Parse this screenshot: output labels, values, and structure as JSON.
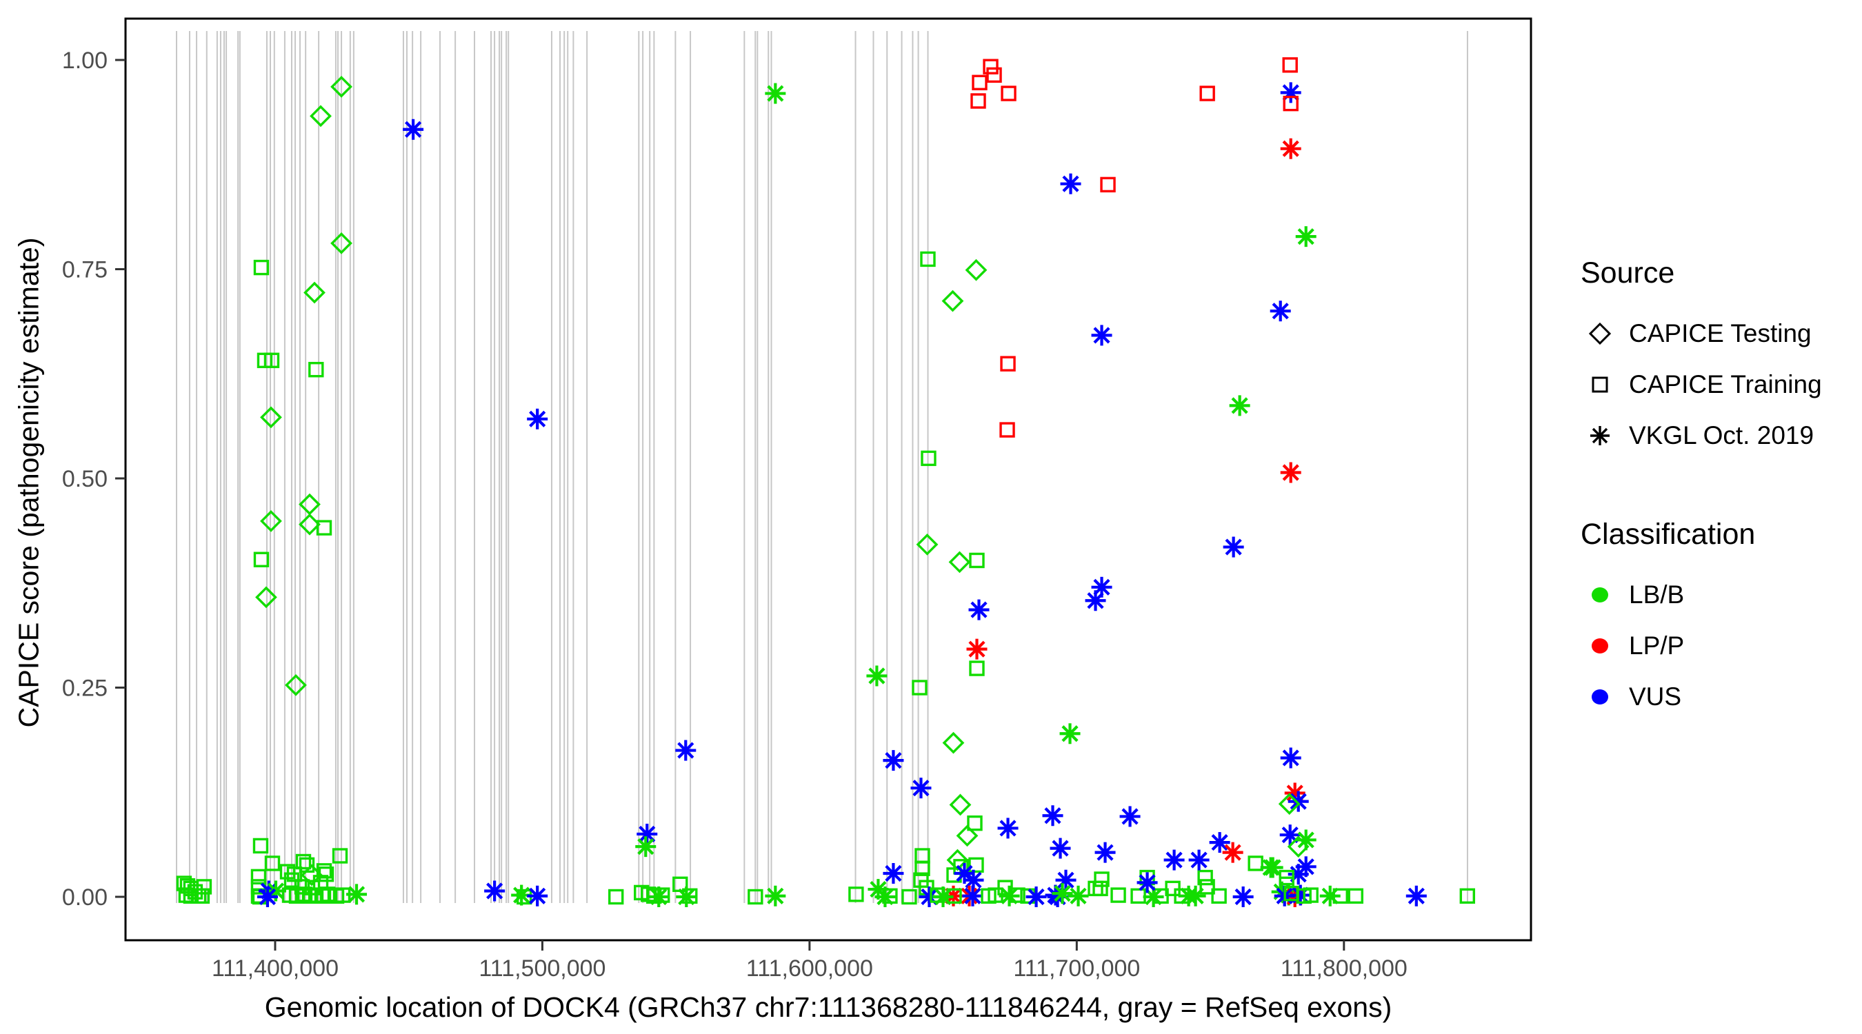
{
  "chart_data": {
    "type": "scatter",
    "title": "",
    "xlabel": "Genomic location of DOCK4 (GRCh37 chr7:111368280-111846244, gray = RefSeq exons)",
    "ylabel": "CAPICE score (pathogenicity estimate)",
    "x_range": [
      111344000,
      111870000
    ],
    "y_range": [
      -0.05,
      1.05
    ],
    "grid": false,
    "x_ticks": {
      "values": [
        111400000,
        111500000,
        111600000,
        111700000,
        111800000
      ],
      "labels": [
        "111,400,000",
        "111,500,000",
        "111,600,000",
        "111,700,000",
        "111,800,000"
      ]
    },
    "y_ticks": {
      "values": [
        0.0,
        0.25,
        0.5,
        0.75,
        1.0
      ],
      "labels": [
        "0.00",
        "0.25",
        "0.50",
        "0.75",
        "1.00"
      ]
    },
    "legend": {
      "position": "right",
      "source": {
        "title": "Source",
        "items": [
          {
            "label": "CAPICE Testing",
            "shape": "diamond"
          },
          {
            "label": "CAPICE Training",
            "shape": "square"
          },
          {
            "label": "VKGL Oct. 2019",
            "shape": "asterisk"
          }
        ]
      },
      "classification": {
        "title": "Classification",
        "items": [
          {
            "label": "LB/B",
            "color": "#12DC00"
          },
          {
            "label": "LP/P",
            "color": "#FF0000"
          },
          {
            "label": "VUS",
            "color": "#0000FF"
          }
        ]
      }
    },
    "colors": {
      "g": "#12DC00",
      "r": "#FF0000",
      "b": "#0000FF",
      "exon_line": "#C7C7C7",
      "tick_text": "#4D4D4D"
    },
    "shape_codes": {
      "d": "diamond (CAPICE Testing)",
      "q": "square (CAPICE Training)",
      "a": "asterisk (VKGL Oct. 2019)"
    },
    "color_codes": {
      "g": "LB/B",
      "r": "LP/P",
      "b": "VUS"
    },
    "exons_bp": [
      111363100,
      111368000,
      111370600,
      111374400,
      111378300,
      111379600,
      111380900,
      111381700,
      111386100,
      111386800,
      111396900,
      111398200,
      111399700,
      111403600,
      111406200,
      111407500,
      111409300,
      111411400,
      111416300,
      111422700,
      111423500,
      111424800,
      111428100,
      111429400,
      111448000,
      111449300,
      111451400,
      111454500,
      111461700,
      111467400,
      111474600,
      111480800,
      111482100,
      111483900,
      111484700,
      111486500,
      111487300,
      111503500,
      111506600,
      111508200,
      111509500,
      111511600,
      111516700,
      111536100,
      111537600,
      111540200,
      111541800,
      111549800,
      111555400,
      111575600,
      111579700,
      111580500,
      111584600,
      111585700,
      111617200,
      111623900,
      111629000,
      111634500,
      111638600,
      111640700,
      111644300,
      111846244
    ],
    "points": [
      [
        111424790,
        0.968,
        "d",
        "g"
      ],
      [
        111417045,
        0.933,
        "d",
        "g"
      ],
      [
        111451652,
        0.917,
        "a",
        "b"
      ],
      [
        111424790,
        0.781,
        "d",
        "g"
      ],
      [
        111394835,
        0.752,
        "q",
        "g"
      ],
      [
        111414719,
        0.722,
        "d",
        "g"
      ],
      [
        111396126,
        0.641,
        "q",
        "g"
      ],
      [
        111398708,
        0.641,
        "q",
        "g"
      ],
      [
        111415314,
        0.63,
        "q",
        "g"
      ],
      [
        111398450,
        0.573,
        "d",
        "g"
      ],
      [
        111498128,
        0.571,
        "a",
        "b"
      ],
      [
        111412911,
        0.469,
        "d",
        "g"
      ],
      [
        111398450,
        0.449,
        "d",
        "g"
      ],
      [
        111412911,
        0.445,
        "d",
        "g"
      ],
      [
        111418333,
        0.441,
        "q",
        "g"
      ],
      [
        111394835,
        0.403,
        "q",
        "g"
      ],
      [
        111396642,
        0.358,
        "d",
        "g"
      ],
      [
        111407747,
        0.253,
        "d",
        "g"
      ],
      [
        111365916,
        0.016,
        "q",
        "g"
      ],
      [
        111367207,
        0.013,
        "q",
        "g"
      ],
      [
        111368498,
        0.01,
        "q",
        "g"
      ],
      [
        111370047,
        0.006,
        "q",
        "g"
      ],
      [
        111366690,
        0.002,
        "q",
        "g"
      ],
      [
        111368498,
        0.001,
        "q",
        "g"
      ],
      [
        111371338,
        0.001,
        "q",
        "g"
      ],
      [
        111373404,
        0.012,
        "q",
        "g"
      ],
      [
        111372629,
        0.001,
        "q",
        "g"
      ],
      [
        111394577,
        0.061,
        "q",
        "g"
      ],
      [
        111398966,
        0.04,
        "q",
        "g"
      ],
      [
        111393803,
        0.024,
        "q",
        "g"
      ],
      [
        111393803,
        0.012,
        "q",
        "g"
      ],
      [
        111393803,
        0.001,
        "q",
        "g"
      ],
      [
        111394319,
        0.0,
        "q",
        "g"
      ],
      [
        111397676,
        0.007,
        "a",
        "b"
      ],
      [
        111400258,
        0.007,
        "a",
        "g"
      ],
      [
        111397160,
        0.0,
        "a",
        "b"
      ],
      [
        111424273,
        0.049,
        "q",
        "g"
      ],
      [
        111410587,
        0.042,
        "q",
        "g"
      ],
      [
        111411878,
        0.038,
        "q",
        "g"
      ],
      [
        111404648,
        0.03,
        "q",
        "g"
      ],
      [
        111407230,
        0.027,
        "q",
        "g"
      ],
      [
        111419108,
        0.027,
        "q",
        "g"
      ],
      [
        111418333,
        0.031,
        "q",
        "g"
      ],
      [
        111413686,
        0.026,
        "d",
        "g"
      ],
      [
        111406197,
        0.02,
        "q",
        "g"
      ],
      [
        111417045,
        0.017,
        "q",
        "g"
      ],
      [
        111410070,
        0.012,
        "q",
        "g"
      ],
      [
        111413944,
        0.011,
        "q",
        "g"
      ],
      [
        111405423,
        0.002,
        "q",
        "g"
      ],
      [
        111408005,
        0.001,
        "q",
        "g"
      ],
      [
        111411104,
        0.003,
        "q",
        "g"
      ],
      [
        111413170,
        0.001,
        "q",
        "g"
      ],
      [
        111415236,
        0.002,
        "q",
        "g"
      ],
      [
        111417560,
        0.001,
        "q",
        "g"
      ],
      [
        111419625,
        0.003,
        "q",
        "g"
      ],
      [
        111422982,
        0.001,
        "q",
        "g"
      ],
      [
        111425306,
        0.002,
        "q",
        "g"
      ],
      [
        111430470,
        0.003,
        "a",
        "g"
      ],
      [
        111482118,
        0.007,
        "a",
        "b"
      ],
      [
        111492189,
        0.002,
        "a",
        "g"
      ],
      [
        111493222,
        0.0,
        "q",
        "g"
      ],
      [
        111498128,
        0.001,
        "a",
        "b"
      ],
      [
        111539188,
        0.075,
        "a",
        "b"
      ],
      [
        111538671,
        0.06,
        "a",
        "g"
      ],
      [
        111553647,
        0.175,
        "a",
        "b"
      ],
      [
        111527561,
        0.0,
        "q",
        "g"
      ],
      [
        111537114,
        0.005,
        "q",
        "g"
      ],
      [
        111539696,
        0.003,
        "q",
        "g"
      ],
      [
        111541762,
        0.001,
        "q",
        "g"
      ],
      [
        111543570,
        0.0,
        "a",
        "g"
      ],
      [
        111544861,
        0.002,
        "q",
        "g"
      ],
      [
        111551582,
        0.015,
        "q",
        "g"
      ],
      [
        111553905,
        0.0,
        "a",
        "g"
      ],
      [
        111555196,
        0.001,
        "q",
        "g"
      ],
      [
        111579725,
        0.0,
        "q",
        "g"
      ],
      [
        111587214,
        0.001,
        "a",
        "g"
      ],
      [
        111587214,
        0.96,
        "a",
        "g"
      ],
      [
        111617423,
        0.003,
        "q",
        "g"
      ],
      [
        111625173,
        0.264,
        "a",
        "g"
      ],
      [
        111625690,
        0.009,
        "a",
        "g"
      ],
      [
        111628272,
        0.0,
        "a",
        "g"
      ],
      [
        111630079,
        0.001,
        "q",
        "g"
      ],
      [
        111631370,
        0.163,
        "a",
        "b"
      ],
      [
        111631370,
        0.028,
        "a",
        "b"
      ],
      [
        111637309,
        0.0,
        "q",
        "g"
      ],
      [
        111641191,
        0.25,
        "q",
        "g"
      ],
      [
        111641707,
        0.13,
        "a",
        "b"
      ],
      [
        111642224,
        0.049,
        "q",
        "g"
      ],
      [
        111642224,
        0.034,
        "q",
        "g"
      ],
      [
        111641707,
        0.02,
        "q",
        "g"
      ],
      [
        111643773,
        0.011,
        "q",
        "g"
      ],
      [
        111644548,
        0.524,
        "q",
        "g"
      ],
      [
        111644031,
        0.421,
        "d",
        "g"
      ],
      [
        111644289,
        0.762,
        "q",
        "g"
      ],
      [
        111644806,
        0.0,
        "a",
        "b"
      ],
      [
        111653840,
        0.184,
        "d",
        "g"
      ],
      [
        111655389,
        0.044,
        "d",
        "g"
      ],
      [
        111654098,
        0.026,
        "q",
        "g"
      ],
      [
        111656680,
        0.036,
        "q",
        "g"
      ],
      [
        111662361,
        0.038,
        "q",
        "g"
      ],
      [
        111656422,
        0.11,
        "d",
        "g"
      ],
      [
        111659004,
        0.073,
        "d",
        "g"
      ],
      [
        111661845,
        0.088,
        "q",
        "g"
      ],
      [
        111657971,
        0.028,
        "a",
        "b"
      ],
      [
        111661329,
        0.02,
        "a",
        "b"
      ],
      [
        111653581,
        0.712,
        "d",
        "g"
      ],
      [
        111662361,
        0.749,
        "d",
        "g"
      ],
      [
        111656164,
        0.4,
        "d",
        "g"
      ],
      [
        111662620,
        0.402,
        "q",
        "g"
      ],
      [
        111663394,
        0.343,
        "a",
        "b"
      ],
      [
        111662620,
        0.296,
        "a",
        "r"
      ],
      [
        111662620,
        0.273,
        "q",
        "g"
      ],
      [
        111653840,
        0.001,
        "a",
        "r"
      ],
      [
        111659779,
        0.001,
        "a",
        "r"
      ],
      [
        111661071,
        0.001,
        "a",
        "b"
      ],
      [
        111647906,
        0.002,
        "q",
        "g"
      ],
      [
        111649972,
        0.0,
        "a",
        "g"
      ],
      [
        111654097,
        0.001,
        "q",
        "g"
      ],
      [
        111667013,
        0.001,
        "q",
        "g"
      ],
      [
        111669595,
        0.002,
        "q",
        "g"
      ],
      [
        111673211,
        0.011,
        "q",
        "g"
      ],
      [
        111674760,
        0.001,
        "a",
        "g"
      ],
      [
        111677859,
        0.002,
        "q",
        "g"
      ],
      [
        111681734,
        0.001,
        "q",
        "g"
      ],
      [
        111684833,
        0.0,
        "a",
        "b"
      ],
      [
        111692838,
        0.0,
        "a",
        "b"
      ],
      [
        111674245,
        0.082,
        "a",
        "b"
      ],
      [
        111667789,
        0.992,
        "q",
        "r"
      ],
      [
        111669080,
        0.982,
        "q",
        "r"
      ],
      [
        111663652,
        0.973,
        "q",
        "r"
      ],
      [
        111674502,
        0.96,
        "q",
        "r"
      ],
      [
        111663136,
        0.951,
        "q",
        "r"
      ],
      [
        111674244,
        0.637,
        "q",
        "r"
      ],
      [
        111673986,
        0.558,
        "q",
        "r"
      ],
      [
        111711669,
        0.851,
        "q",
        "r"
      ],
      [
        111748868,
        0.96,
        "q",
        "r"
      ],
      [
        111697727,
        0.852,
        "a",
        "b"
      ],
      [
        111709345,
        0.671,
        "a",
        "b"
      ],
      [
        111709345,
        0.37,
        "a",
        "b"
      ],
      [
        111707021,
        0.354,
        "a",
        "b"
      ],
      [
        111697469,
        0.195,
        "a",
        "g"
      ],
      [
        111691014,
        0.097,
        "a",
        "b"
      ],
      [
        111719934,
        0.096,
        "a",
        "b"
      ],
      [
        111693855,
        0.058,
        "a",
        "b"
      ],
      [
        111710636,
        0.053,
        "a",
        "b"
      ],
      [
        111695921,
        0.02,
        "a",
        "b"
      ],
      [
        111692047,
        0.002,
        "a",
        "b"
      ],
      [
        111694630,
        0.004,
        "a",
        "g"
      ],
      [
        111700568,
        0.001,
        "a",
        "g"
      ],
      [
        111709345,
        0.021,
        "q",
        "g"
      ],
      [
        111707021,
        0.01,
        "q",
        "g"
      ],
      [
        111708828,
        0.01,
        "q",
        "g"
      ],
      [
        111715543,
        0.002,
        "q",
        "g"
      ],
      [
        111723033,
        0.001,
        "q",
        "g"
      ],
      [
        111728714,
        0.0,
        "a",
        "g"
      ],
      [
        111731554,
        0.001,
        "q",
        "g"
      ],
      [
        111735944,
        0.01,
        "q",
        "g"
      ],
      [
        111739301,
        0.001,
        "q",
        "g"
      ],
      [
        111741883,
        0.001,
        "a",
        "g"
      ],
      [
        111744465,
        0.001,
        "a",
        "g"
      ],
      [
        111753245,
        0.001,
        "q",
        "g"
      ],
      [
        111726390,
        0.023,
        "q",
        "g"
      ],
      [
        111726390,
        0.017,
        "a",
        "b"
      ],
      [
        111748080,
        0.023,
        "q",
        "g"
      ],
      [
        111748855,
        0.012,
        "q",
        "g"
      ],
      [
        111736460,
        0.044,
        "a",
        "b"
      ],
      [
        111745756,
        0.044,
        "a",
        "b"
      ],
      [
        111753503,
        0.065,
        "a",
        "b"
      ],
      [
        111758409,
        0.053,
        "a",
        "r"
      ],
      [
        111766930,
        0.04,
        "q",
        "g"
      ],
      [
        111772611,
        0.035,
        "a",
        "g"
      ],
      [
        111762283,
        0.0,
        "a",
        "b"
      ],
      [
        111779848,
        0.994,
        "q",
        "r"
      ],
      [
        111780106,
        0.961,
        "a",
        "b"
      ],
      [
        111780106,
        0.948,
        "q",
        "r"
      ],
      [
        111780106,
        0.894,
        "a",
        "r"
      ],
      [
        111785787,
        0.789,
        "a",
        "g"
      ],
      [
        111776232,
        0.7,
        "a",
        "b"
      ],
      [
        111760991,
        0.587,
        "a",
        "g"
      ],
      [
        111780106,
        0.507,
        "a",
        "r"
      ],
      [
        111758667,
        0.418,
        "a",
        "b"
      ],
      [
        111780106,
        0.166,
        "a",
        "b"
      ],
      [
        111781655,
        0.124,
        "a",
        "r"
      ],
      [
        111782946,
        0.114,
        "a",
        "b"
      ],
      [
        111779590,
        0.111,
        "d",
        "g"
      ],
      [
        111779848,
        0.074,
        "a",
        "b"
      ],
      [
        111785787,
        0.068,
        "a",
        "g"
      ],
      [
        111782946,
        0.06,
        "d",
        "g"
      ],
      [
        111773385,
        0.035,
        "a",
        "g"
      ],
      [
        111785787,
        0.036,
        "a",
        "b"
      ],
      [
        111782946,
        0.027,
        "a",
        "b"
      ],
      [
        111778557,
        0.023,
        "q",
        "g"
      ],
      [
        111778557,
        0.015,
        "q",
        "g"
      ],
      [
        111776749,
        0.006,
        "a",
        "g"
      ],
      [
        111779331,
        0.002,
        "a",
        "g"
      ],
      [
        111781655,
        0.0,
        "a",
        "r"
      ],
      [
        111777782,
        0.001,
        "a",
        "b"
      ],
      [
        111783721,
        0.002,
        "a",
        "b"
      ],
      [
        111780364,
        0.004,
        "q",
        "g"
      ],
      [
        111785012,
        0.001,
        "q",
        "g"
      ],
      [
        111787594,
        0.002,
        "q",
        "g"
      ],
      [
        111794824,
        0.001,
        "a",
        "g"
      ],
      [
        111798697,
        0.001,
        "q",
        "g"
      ],
      [
        111804379,
        0.001,
        "q",
        "g"
      ],
      [
        111827103,
        0.001,
        "a",
        "b"
      ],
      [
        111846200,
        0.001,
        "q",
        "g"
      ]
    ]
  }
}
